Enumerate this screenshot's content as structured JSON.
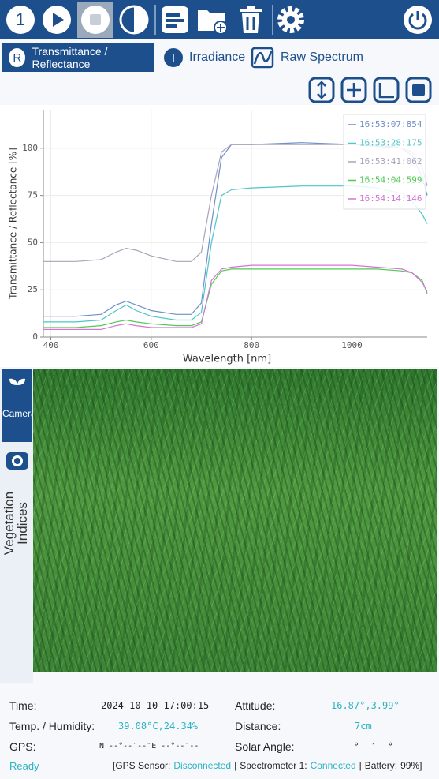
{
  "toolbar": {
    "counter": "1"
  },
  "tabs": [
    {
      "icon": "R",
      "label": "Transmittance / Reflectance"
    },
    {
      "icon": "I",
      "label": "Irradiance"
    },
    {
      "label": "Raw Spectrum"
    }
  ],
  "chart_data": {
    "type": "line",
    "xlabel": "Wavelength [nm]",
    "ylabel": "Transmittance / Reflectance [%]",
    "x": [
      385,
      450,
      500,
      530,
      550,
      570,
      600,
      650,
      680,
      700,
      720,
      740,
      760,
      800,
      900,
      1000,
      1050,
      1100,
      1120,
      1140,
      1150
    ],
    "series": [
      {
        "name": "16:53:07:854",
        "color": "#6f8fc8",
        "values": [
          11,
          11,
          12,
          17,
          19,
          17,
          14,
          12,
          12,
          18,
          60,
          95,
          102,
          102,
          103,
          102,
          101,
          100,
          96,
          85,
          75
        ]
      },
      {
        "name": "16:53:28:175",
        "color": "#4cc6c6",
        "values": [
          8,
          8,
          9,
          14,
          17,
          14,
          11,
          9,
          9,
          13,
          50,
          75,
          78,
          79,
          80,
          80,
          79,
          76,
          72,
          65,
          60
        ]
      },
      {
        "name": "16:53:41:062",
        "color": "#aaa2ba",
        "values": [
          40,
          40,
          41,
          45,
          47,
          46,
          43,
          40,
          40,
          45,
          75,
          98,
          102,
          102,
          102,
          102,
          102,
          100,
          98,
          90,
          80
        ]
      },
      {
        "name": "16:54:04:599",
        "color": "#4fca4f",
        "values": [
          5,
          5,
          6,
          8,
          9,
          8,
          7,
          6,
          6,
          8,
          28,
          35,
          36,
          36,
          36,
          36,
          36,
          35,
          34,
          30,
          23
        ]
      },
      {
        "name": "16:54:14:146",
        "color": "#d673d6",
        "values": [
          4,
          4,
          4,
          6,
          7,
          6,
          5,
          5,
          5,
          7,
          30,
          36,
          37,
          38,
          38,
          38,
          37,
          36,
          34,
          29,
          24
        ]
      }
    ],
    "xlim": [
      385,
      1150
    ],
    "ylim": [
      0,
      120
    ],
    "xticks": [
      400,
      600,
      800,
      1000
    ],
    "yticks": [
      0,
      25,
      50,
      75,
      100
    ],
    "grid": true,
    "legend": "top-right"
  },
  "side_tabs": [
    "Camera",
    "Vegetation Indices"
  ],
  "info": [
    [
      "Time:",
      "2024-10-10 17:00:15",
      "Attitude:",
      "16.87°,3.99°"
    ],
    [
      "Temp. / Humidity:",
      "39.08°C,24.34%",
      "Distance:",
      "7cm"
    ],
    [
      "GPS:",
      "N --°--′--″E --°--′--",
      "Solar Angle:",
      "--°--′--°"
    ]
  ],
  "status": {
    "state": "Ready",
    "parts": [
      "[GPS Sensor:",
      "Disconnected",
      "|",
      "Spectrometer 1:",
      "Connected",
      "|",
      "Battery:",
      "99%]"
    ]
  }
}
